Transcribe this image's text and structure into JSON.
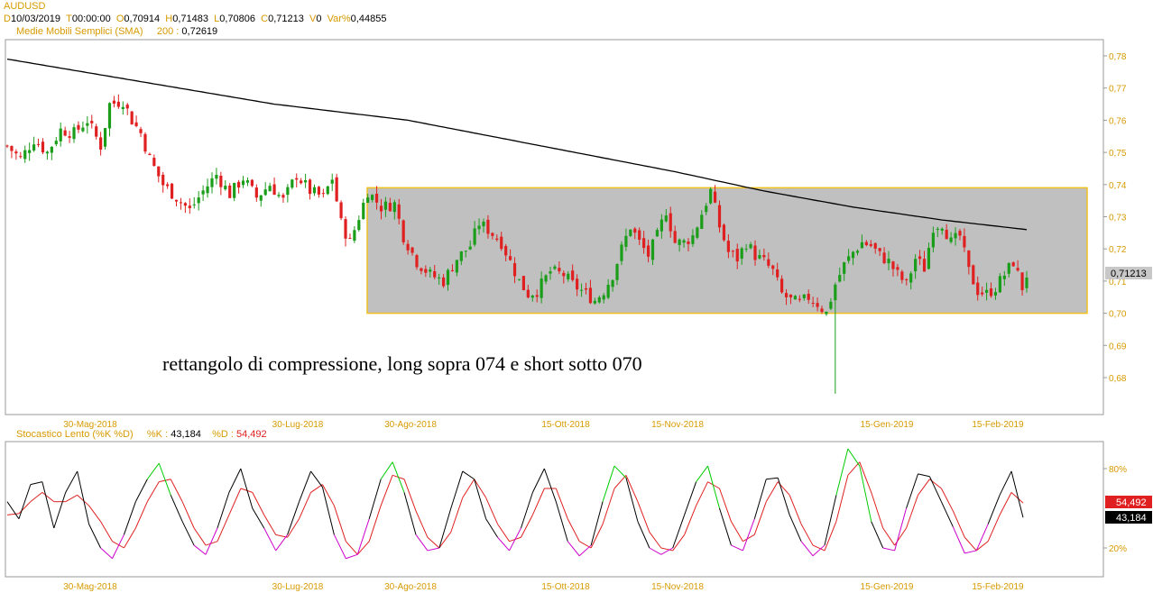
{
  "header": {
    "symbol": "AUDUSD",
    "d_label": "D",
    "d_value": "10/03/2019",
    "t_label": "T",
    "t_value": "00:00:00",
    "o_label": "O",
    "o_value": "0,70914",
    "h_label": "H",
    "h_value": "0,71483",
    "l_label": "L",
    "l_value": "0,70806",
    "c_label": "C",
    "c_value": "0,71213",
    "v_label": "V",
    "v_value": "0",
    "var_label": "Var%",
    "var_value": "0,44855",
    "sma_label": "Medie Mobili Semplici (SMA)",
    "sma_period": "200 :",
    "sma_value": "0,72619"
  },
  "oscillator_header": {
    "name": "Stocastico Lento (%K %D)",
    "k_label": "%K :",
    "k_value": "43,184",
    "d_label": "%D :",
    "d_value": "54,492"
  },
  "annotation": "rettangolo di compressione, long sopra 074 e short sotto 070",
  "last_price_tag": "0,71213",
  "osc_tags": {
    "d": "54,492",
    "k": "43,184"
  },
  "colors": {
    "up": "#1a9e1a",
    "down": "#e02020",
    "sma": "#000000",
    "box_fill": "#c0c0c0",
    "box_border": "#f0c020",
    "k_line": "#000000",
    "d_line": "#e02020",
    "overbought": "#00cc00",
    "oversold": "#cc00cc",
    "axis_text": "#d79a00"
  },
  "chart_data": [
    {
      "type": "candlestick",
      "title": "AUDUSD",
      "ylim": [
        0.675,
        0.785
      ],
      "y_ticks": [
        "0,78",
        "0,77",
        "0,76",
        "0,75",
        "0,74",
        "0,73",
        "0,72",
        "0,71",
        "0,70",
        "0,69",
        "0,68"
      ],
      "x_ticks": [
        "30-Mag-2018",
        "30-Lug-2018",
        "30-Ago-2018",
        "15-Ott-2018",
        "15-Nov-2018",
        "15-Gen-2019",
        "15-Feb-2019"
      ],
      "close_path": [
        [
          0,
          0.752
        ],
        [
          3,
          0.748
        ],
        [
          6,
          0.754
        ],
        [
          9,
          0.75
        ],
        [
          12,
          0.757
        ],
        [
          15,
          0.756
        ],
        [
          18,
          0.76
        ],
        [
          21,
          0.752
        ],
        [
          23,
          0.765
        ],
        [
          26,
          0.766
        ],
        [
          28,
          0.76
        ],
        [
          30,
          0.756
        ],
        [
          32,
          0.748
        ],
        [
          35,
          0.74
        ],
        [
          38,
          0.736
        ],
        [
          41,
          0.732
        ],
        [
          44,
          0.738
        ],
        [
          47,
          0.743
        ],
        [
          50,
          0.737
        ],
        [
          53,
          0.742
        ],
        [
          56,
          0.736
        ],
        [
          59,
          0.74
        ],
        [
          62,
          0.735
        ],
        [
          65,
          0.743
        ],
        [
          68,
          0.738
        ],
        [
          71,
          0.736
        ],
        [
          73,
          0.742
        ],
        [
          75,
          0.728
        ],
        [
          77,
          0.722
        ],
        [
          79,
          0.73
        ],
        [
          81,
          0.738
        ],
        [
          84,
          0.733
        ],
        [
          87,
          0.734
        ],
        [
          89,
          0.724
        ],
        [
          92,
          0.716
        ],
        [
          95,
          0.712
        ],
        [
          98,
          0.71
        ],
        [
          101,
          0.717
        ],
        [
          104,
          0.721
        ],
        [
          106,
          0.728
        ],
        [
          108,
          0.726
        ],
        [
          111,
          0.722
        ],
        [
          113,
          0.716
        ],
        [
          115,
          0.71
        ],
        [
          117,
          0.706
        ],
        [
          119,
          0.707
        ],
        [
          122,
          0.713
        ],
        [
          125,
          0.712
        ],
        [
          127,
          0.709
        ],
        [
          130,
          0.706
        ],
        [
          132,
          0.704
        ],
        [
          134,
          0.707
        ],
        [
          136,
          0.712
        ],
        [
          138,
          0.72
        ],
        [
          140,
          0.727
        ],
        [
          142,
          0.722
        ],
        [
          144,
          0.718
        ],
        [
          146,
          0.724
        ],
        [
          148,
          0.732
        ],
        [
          150,
          0.722
        ],
        [
          152,
          0.722
        ],
        [
          154,
          0.724
        ],
        [
          156,
          0.731
        ],
        [
          158,
          0.738
        ],
        [
          160,
          0.727
        ],
        [
          162,
          0.719
        ],
        [
          164,
          0.717
        ],
        [
          166,
          0.722
        ],
        [
          168,
          0.718
        ],
        [
          170,
          0.716
        ],
        [
          172,
          0.713
        ],
        [
          174,
          0.706
        ],
        [
          176,
          0.704
        ],
        [
          178,
          0.703
        ],
        [
          180,
          0.705
        ],
        [
          182,
          0.703
        ],
        [
          184,
          0.7
        ],
        [
          186,
          0.709
        ],
        [
          188,
          0.715
        ],
        [
          190,
          0.719
        ],
        [
          192,
          0.722
        ],
        [
          194,
          0.721
        ],
        [
          196,
          0.718
        ],
        [
          198,
          0.716
        ],
        [
          200,
          0.712
        ],
        [
          202,
          0.709
        ],
        [
          204,
          0.717
        ],
        [
          206,
          0.714
        ],
        [
          208,
          0.727
        ],
        [
          210,
          0.728
        ],
        [
          212,
          0.722
        ],
        [
          214,
          0.724
        ],
        [
          216,
          0.713
        ],
        [
          218,
          0.707
        ],
        [
          220,
          0.706
        ],
        [
          222,
          0.708
        ],
        [
          224,
          0.712
        ],
        [
          226,
          0.716
        ],
        [
          228,
          0.708
        ],
        [
          229,
          0.712
        ]
      ],
      "spike_low": 0.675,
      "sma_200": [
        [
          0,
          0.779
        ],
        [
          30,
          0.772
        ],
        [
          60,
          0.765
        ],
        [
          90,
          0.76
        ],
        [
          120,
          0.752
        ],
        [
          150,
          0.744
        ],
        [
          170,
          0.738
        ],
        [
          190,
          0.733
        ],
        [
          210,
          0.729
        ],
        [
          229,
          0.726
        ]
      ],
      "box": {
        "y_top": 0.739,
        "y_bottom": 0.7,
        "x_start": 80,
        "x_end": 238
      },
      "last_close": 0.71213,
      "sma_last": 0.72619
    },
    {
      "type": "line",
      "title": "Stocastico Lento (%K %D)",
      "ylim": [
        0,
        100
      ],
      "y_ticks": [
        "80%",
        "20%"
      ],
      "series": [
        {
          "name": "%K",
          "values": [
            55,
            42,
            68,
            70,
            35,
            62,
            78,
            38,
            20,
            12,
            30,
            55,
            72,
            84,
            60,
            40,
            22,
            15,
            35,
            62,
            80,
            50,
            35,
            18,
            30,
            55,
            78,
            66,
            30,
            12,
            15,
            42,
            72,
            85,
            62,
            30,
            18,
            20,
            50,
            78,
            72,
            42,
            28,
            18,
            35,
            62,
            80,
            55,
            25,
            14,
            22,
            55,
            82,
            73,
            40,
            20,
            15,
            20,
            45,
            70,
            82,
            50,
            22,
            18,
            42,
            72,
            73,
            45,
            25,
            14,
            22,
            60,
            95,
            82,
            40,
            20,
            18,
            50,
            76,
            74,
            55,
            36,
            16,
            18,
            38,
            60,
            78,
            43
          ]
        },
        {
          "name": "%D",
          "values": [
            45,
            46,
            55,
            62,
            55,
            55,
            60,
            52,
            40,
            25,
            20,
            35,
            55,
            70,
            72,
            55,
            35,
            22,
            25,
            45,
            65,
            62,
            45,
            30,
            28,
            42,
            62,
            68,
            52,
            25,
            15,
            25,
            52,
            75,
            72,
            48,
            28,
            20,
            32,
            58,
            72,
            58,
            38,
            25,
            28,
            45,
            65,
            65,
            42,
            25,
            20,
            38,
            65,
            75,
            55,
            32,
            20,
            18,
            30,
            52,
            70,
            65,
            40,
            25,
            30,
            55,
            70,
            60,
            38,
            22,
            18,
            40,
            75,
            85,
            62,
            35,
            22,
            35,
            60,
            72,
            65,
            48,
            28,
            18,
            25,
            45,
            62,
            54
          ]
        }
      ]
    }
  ]
}
